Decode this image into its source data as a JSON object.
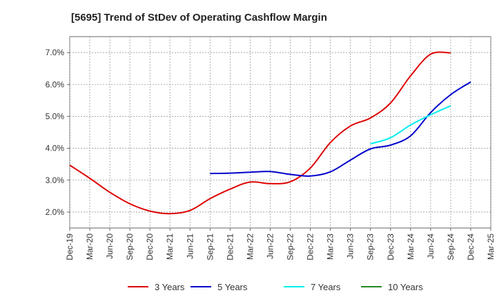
{
  "chart_data": {
    "type": "line",
    "title": "[5695]  Trend of StDev of Operating Cashflow Margin",
    "xlabel": "",
    "ylabel": "",
    "ylim": [
      1.5,
      7.5
    ],
    "yticks": [
      2.0,
      3.0,
      4.0,
      5.0,
      6.0,
      7.0
    ],
    "ytick_labels": [
      "2.0%",
      "3.0%",
      "4.0%",
      "5.0%",
      "6.0%",
      "7.0%"
    ],
    "x_categories": [
      "Dec-19",
      "Mar-20",
      "Jun-20",
      "Sep-20",
      "Dec-20",
      "Mar-21",
      "Jun-21",
      "Sep-21",
      "Dec-21",
      "Mar-22",
      "Jun-22",
      "Sep-22",
      "Dec-22",
      "Mar-23",
      "Jun-23",
      "Sep-23",
      "Dec-23",
      "Mar-24",
      "Jun-24",
      "Sep-24",
      "Dec-24",
      "Mar-25"
    ],
    "grid": true,
    "legend_position": "bottom",
    "series": [
      {
        "name": "3 Years",
        "color": "#dd0000",
        "start_index": 0,
        "values": [
          3.47,
          3.06,
          2.62,
          2.26,
          2.03,
          1.95,
          2.05,
          2.42,
          2.72,
          2.94,
          2.89,
          2.95,
          3.38,
          4.18,
          4.7,
          4.95,
          5.42,
          6.27,
          6.95,
          6.99
        ]
      },
      {
        "name": "5 Years",
        "color": "#0000cc",
        "start_index": 7,
        "values": [
          3.21,
          3.22,
          3.25,
          3.27,
          3.18,
          3.13,
          3.26,
          3.63,
          3.98,
          4.1,
          4.39,
          5.12,
          5.68,
          6.08
        ]
      },
      {
        "name": "7 Years",
        "color": "#00eeee",
        "start_index": 15,
        "values": [
          4.14,
          4.33,
          4.73,
          5.05,
          5.33
        ]
      },
      {
        "name": "10 Years",
        "color": "#228822",
        "start_index": 0,
        "values": []
      }
    ]
  }
}
